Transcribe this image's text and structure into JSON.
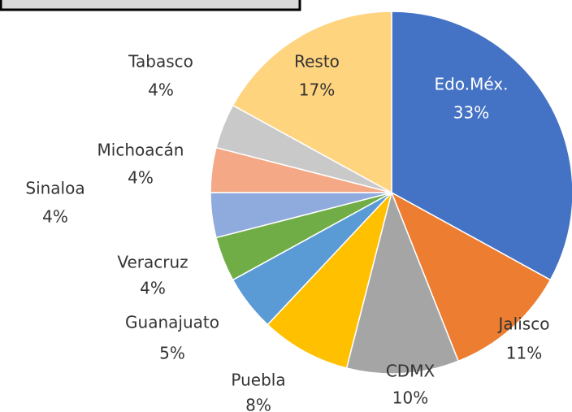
{
  "chart_data": {
    "type": "pie",
    "categories": [
      "Edo.Méx.",
      "Jalisco",
      "CDMX",
      "Puebla",
      "Guanajuato",
      "Veracruz",
      "Sinaloa",
      "Michoacán",
      "Tabasco",
      "Resto"
    ],
    "values": [
      33,
      11,
      10,
      8,
      5,
      4,
      4,
      4,
      4,
      17
    ],
    "value_labels": [
      "33%",
      "11%",
      "10%",
      "8%",
      "5%",
      "4%",
      "4%",
      "4%",
      "4%",
      "17%"
    ],
    "colors": [
      "#4472c4",
      "#ed7d31",
      "#a5a5a5",
      "#ffc000",
      "#5b9bd5",
      "#70ad47",
      "#8faadc",
      "#f4a886",
      "#c9c9c9",
      "#ffd47f"
    ]
  }
}
